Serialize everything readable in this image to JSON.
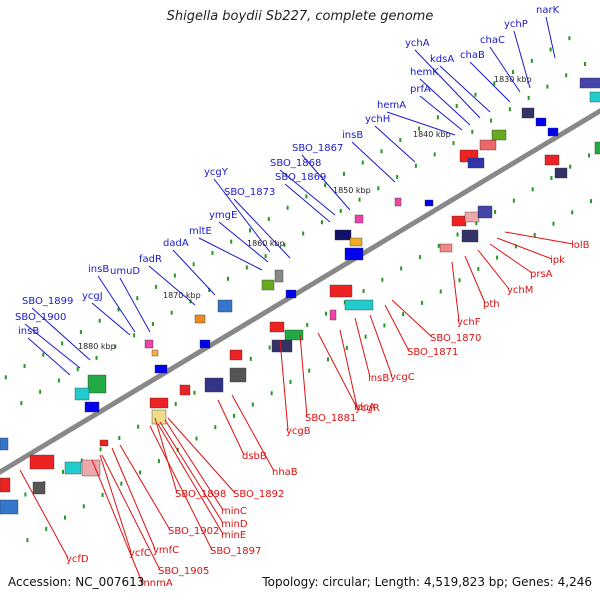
{
  "title": "Shigella boydii Sb227, complete genome",
  "footer": {
    "accession": "Accession: NC_007613",
    "summary": "Topology: circular; Length: 4,519,823 bp; Genes: 4,246"
  },
  "colors": {
    "forward_label": "#1a1acc",
    "reverse_label": "#dd1111",
    "axis": "#777777",
    "tick": "#229922"
  },
  "kbp_labels": [
    "1830 kbp",
    "1840 kbp",
    "1850 kbp",
    "1860 kbp",
    "1870 kbp",
    "1880 kbp"
  ],
  "forward_genes": [
    "narK",
    "ychP",
    "chaC",
    "chaB",
    "kdsA",
    "ychA",
    "hemK",
    "prfA",
    "hemA",
    "ychH",
    "insB",
    "SBO_1867",
    "SBO_1868",
    "SBO_1869",
    "SBO_1873",
    "ycgY",
    "ymgE",
    "mltE",
    "dadA",
    "fadR",
    "umuD",
    "insB",
    "ycgJ",
    "SBO_1899",
    "SBO_1900",
    "insB"
  ],
  "reverse_genes": [
    "lolB",
    "ipk",
    "prsA",
    "ychM",
    "pth",
    "ychF",
    "SBO_1870",
    "SBO_1871",
    "ycgC",
    "insB",
    "ldcA",
    "ycgR",
    "SBO_1881",
    "ycgB",
    "nhaB",
    "dsbB",
    "SBO_1892",
    "SBO_1898",
    "minC",
    "minD",
    "minE",
    "SBO_1897",
    "SBO_1902",
    "ymfC",
    "ycfC",
    "SBO_1905",
    "mnmA",
    "ycfD"
  ]
}
